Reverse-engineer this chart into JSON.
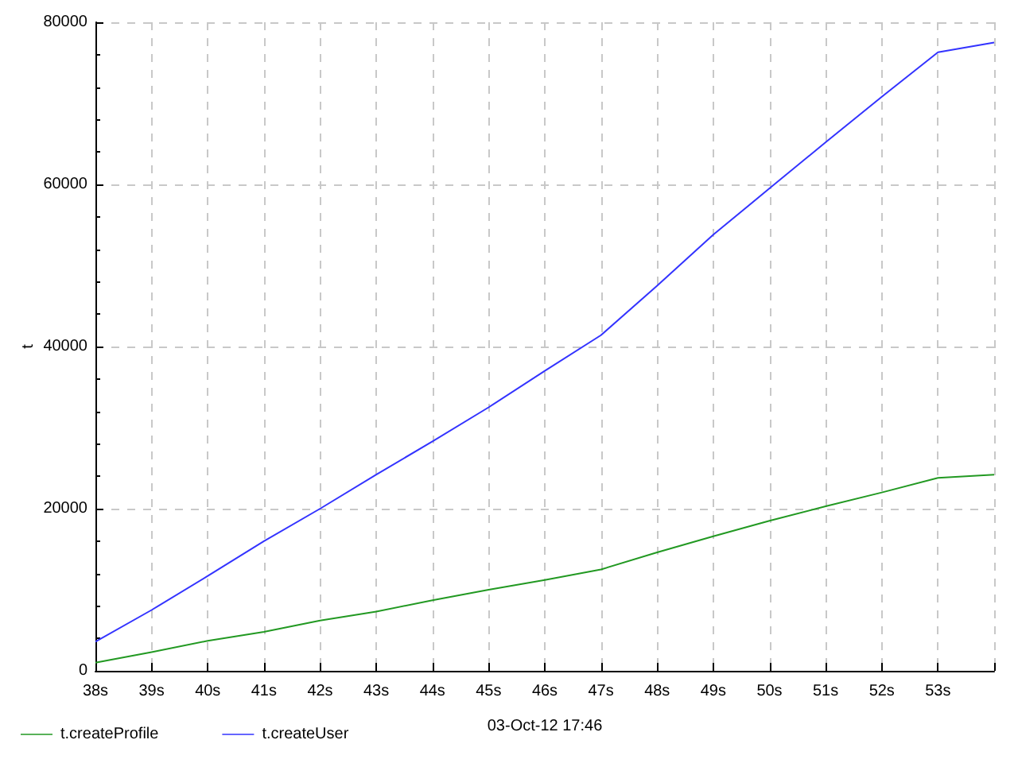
{
  "chart_data": {
    "type": "line",
    "xlabel": "03-Oct-12 17:46",
    "ylabel": "t",
    "x": [
      38,
      39,
      40,
      41,
      42,
      43,
      44,
      45,
      46,
      47,
      48,
      49,
      50,
      51,
      52,
      53,
      54
    ],
    "series": [
      {
        "name": "t.createProfile",
        "color": "#229922",
        "values": [
          1000,
          2300,
          3700,
          4800,
          6200,
          7300,
          8700,
          10000,
          11200,
          12500,
          14600,
          16600,
          18500,
          20300,
          22000,
          23800,
          24200
        ]
      },
      {
        "name": "t.createUser",
        "color": "#3333ff",
        "values": [
          3600,
          7500,
          11700,
          16000,
          20000,
          24200,
          28300,
          32500,
          37000,
          41400,
          47500,
          53800,
          59500,
          65200,
          70800,
          76300,
          77500
        ]
      }
    ],
    "xlim": [
      38,
      54
    ],
    "xticks": [
      {
        "value": 38,
        "label": "38s"
      },
      {
        "value": 39,
        "label": "39s"
      },
      {
        "value": 40,
        "label": "40s"
      },
      {
        "value": 41,
        "label": "41s"
      },
      {
        "value": 42,
        "label": "42s"
      },
      {
        "value": 43,
        "label": "43s"
      },
      {
        "value": 44,
        "label": "44s"
      },
      {
        "value": 45,
        "label": "45s"
      },
      {
        "value": 46,
        "label": "46s"
      },
      {
        "value": 47,
        "label": "47s"
      },
      {
        "value": 48,
        "label": "48s"
      },
      {
        "value": 49,
        "label": "49s"
      },
      {
        "value": 50,
        "label": "50s"
      },
      {
        "value": 51,
        "label": "51s"
      },
      {
        "value": 52,
        "label": "52s"
      },
      {
        "value": 53,
        "label": "53s"
      },
      {
        "value": 54,
        "label": null
      }
    ],
    "ylim": [
      0,
      80000
    ],
    "yticks": [
      0,
      20000,
      40000,
      60000,
      80000
    ],
    "grid": true,
    "legend": "bottom left",
    "marker": "none",
    "line_style": "solid"
  }
}
